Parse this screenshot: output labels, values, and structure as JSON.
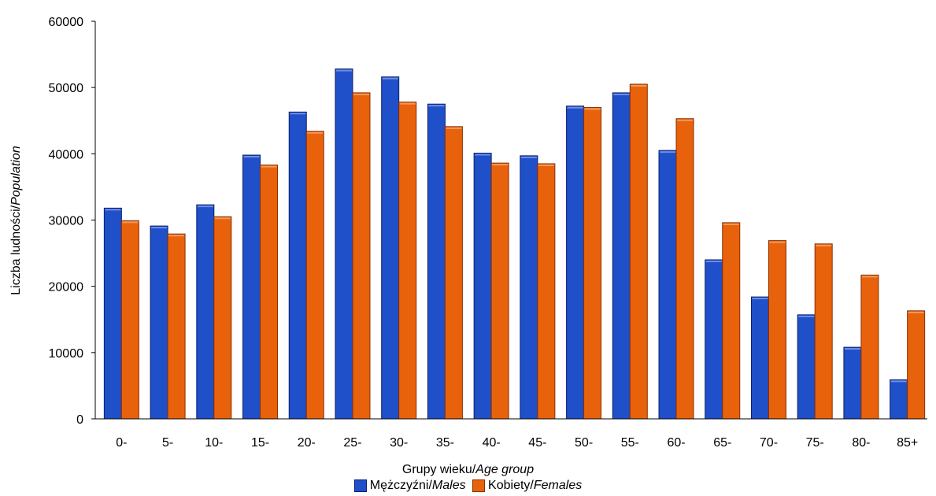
{
  "chart_data": {
    "type": "bar",
    "categories": [
      "0-",
      "5-",
      "10-",
      "15-",
      "20-",
      "25-",
      "30-",
      "35-",
      "40-",
      "45-",
      "50-",
      "55-",
      "60-",
      "65-",
      "70-",
      "75-",
      "80-",
      "85+"
    ],
    "series": [
      {
        "name": "Mężczyźni/Males",
        "name_plain": "Mężczyźni/",
        "name_italic": "Males",
        "color": "#1f4fc9",
        "values": [
          31800,
          29100,
          32300,
          39800,
          46300,
          52800,
          51600,
          47500,
          40100,
          39700,
          47200,
          49200,
          40500,
          24000,
          18400,
          15700,
          10800,
          5900
        ]
      },
      {
        "name": "Kobiety/Females",
        "name_plain": "Kobiety/",
        "name_italic": "Females",
        "color": "#e8620c",
        "values": [
          29900,
          27900,
          30500,
          38300,
          43400,
          49200,
          47800,
          44100,
          38600,
          38500,
          47000,
          50500,
          45300,
          29600,
          26900,
          26400,
          21700,
          16300
        ]
      }
    ],
    "xlabel": "Grupy wieku/Age group",
    "xlabel_plain": "Grupy wieku/",
    "xlabel_italic": "Age group",
    "ylabel": "Liczba ludności/Population",
    "ylabel_plain": "Liczba ludności/",
    "ylabel_italic": "Population",
    "ylim": [
      0,
      60000
    ],
    "yticks": [
      0,
      10000,
      20000,
      30000,
      40000,
      50000,
      60000
    ],
    "grid": false,
    "legend_position": "bottom"
  }
}
